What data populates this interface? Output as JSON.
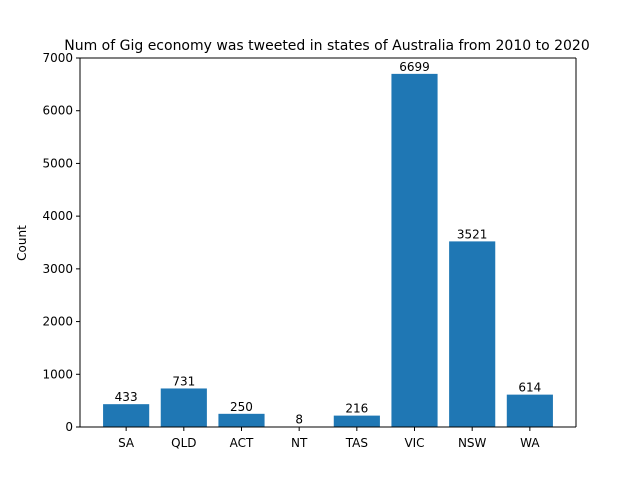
{
  "chart_data": {
    "type": "bar",
    "title": "Num of Gig economy was tweeted in states of Australia from 2010 to 2020",
    "xlabel": "",
    "ylabel": "Count",
    "categories": [
      "SA",
      "QLD",
      "ACT",
      "NT",
      "TAS",
      "VIC",
      "NSW",
      "WA"
    ],
    "values": [
      433,
      731,
      250,
      8,
      216,
      6699,
      3521,
      614
    ],
    "data_labels": [
      "433",
      "731",
      "250",
      "8",
      "216",
      "6699",
      "3521",
      "614"
    ],
    "ylim": [
      0,
      7000
    ],
    "yticks": [
      0,
      1000,
      2000,
      3000,
      4000,
      5000,
      6000,
      7000
    ],
    "ytick_labels": [
      "0",
      "1000",
      "2000",
      "3000",
      "4000",
      "5000",
      "6000",
      "7000"
    ],
    "bar_color": "#1f77b4",
    "grid": false,
    "legend": "none"
  }
}
